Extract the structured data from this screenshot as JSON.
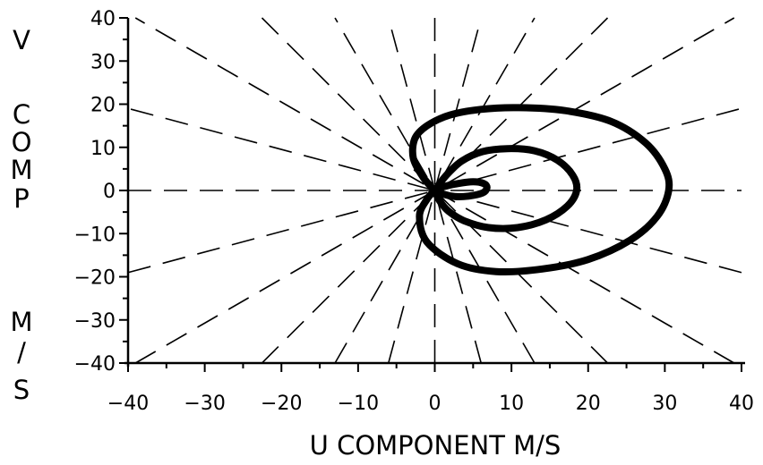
{
  "chart_data": {
    "type": "line",
    "title": "",
    "xlabel": "U COMPONENT  M/S",
    "ylabel": "V COMP M/S",
    "ylabel_lines": [
      "V",
      "C",
      "O",
      "M",
      "P",
      "M",
      "/",
      "S"
    ],
    "xlim": [
      -40,
      40
    ],
    "ylim": [
      -40,
      40
    ],
    "xticks": [
      -40,
      -30,
      -20,
      -10,
      0,
      10,
      20,
      30,
      40
    ],
    "xtick_labels": [
      "−40",
      "−30",
      "−20",
      "−10",
      "0",
      "10",
      "20",
      "30",
      "40"
    ],
    "yticks": [
      40,
      30,
      20,
      10,
      0,
      -10,
      -20,
      -30,
      -40
    ],
    "ytick_labels": [
      "40",
      "30",
      "20",
      "10",
      "0",
      "−10",
      "−20",
      "−30",
      "−40"
    ],
    "grid": false,
    "reference_lines": {
      "style": "dashed",
      "angles_deg": [
        0,
        15,
        30,
        45,
        60,
        75,
        90,
        105,
        120,
        135,
        150,
        165
      ]
    },
    "series": [
      {
        "x": [
          0,
          -1.5,
          -2.8,
          -2.6,
          -1.0,
          2,
          6,
          11,
          17,
          23,
          27.5,
          30,
          30.5,
          29,
          25.5,
          20,
          14,
          8,
          3,
          -1,
          -2,
          -1,
          0
        ],
        "y": [
          0,
          3,
          7.5,
          12,
          15,
          17.5,
          18.8,
          19.2,
          18.5,
          16,
          11,
          5,
          0,
          -6,
          -11.5,
          -16,
          -18.2,
          -18.8,
          -17,
          -12,
          -6,
          -2,
          0
        ]
      },
      {
        "x": [
          0,
          1.5,
          3.5,
          6.2,
          9.5,
          13,
          16,
          18,
          18.5,
          17.3,
          14.5,
          10.8,
          7,
          3.8,
          1.8,
          0.6,
          0
        ],
        "y": [
          0,
          3.5,
          6.8,
          9,
          9.7,
          9.2,
          7,
          3.5,
          0,
          -3.6,
          -6.8,
          -8.6,
          -8.6,
          -7,
          -4.8,
          -2.3,
          0
        ]
      },
      {
        "x": [
          0,
          1.2,
          3,
          5,
          6.4,
          6.8,
          6.2,
          4.4,
          2.6,
          1.2,
          0
        ],
        "y": [
          0,
          0.9,
          1.6,
          2,
          1.6,
          0.6,
          -0.6,
          -1.3,
          -1.4,
          -0.9,
          0
        ]
      }
    ]
  }
}
